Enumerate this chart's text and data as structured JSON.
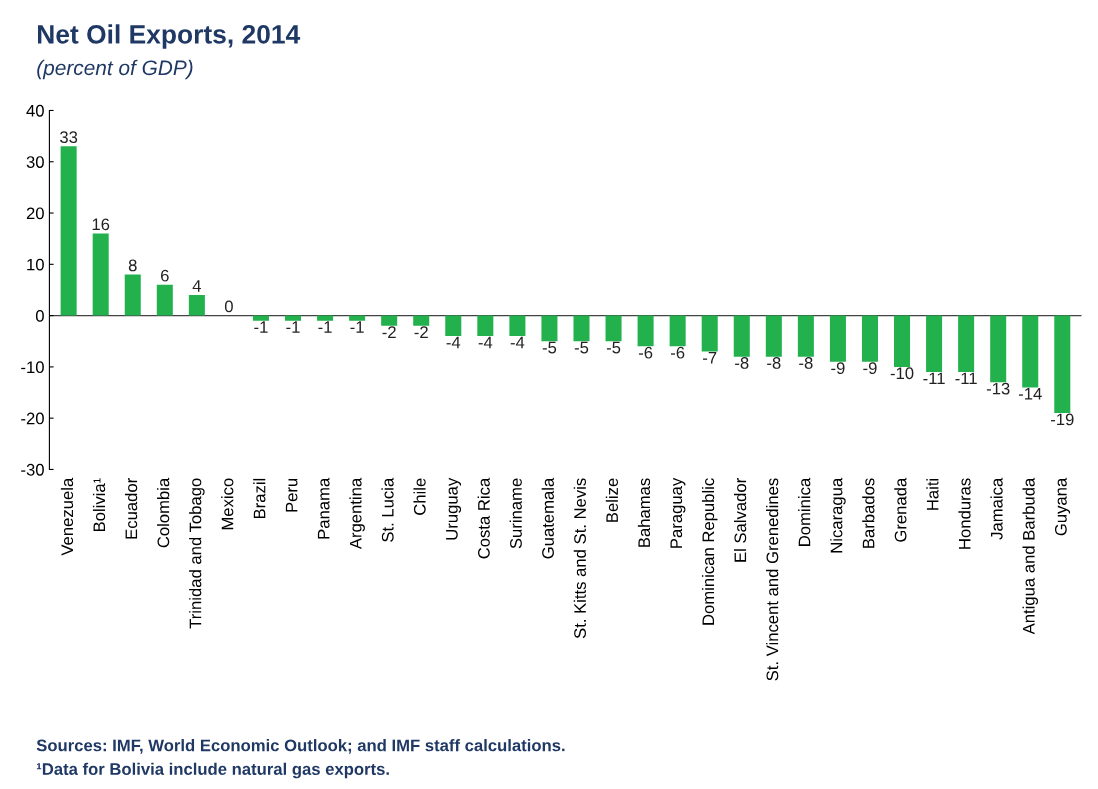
{
  "chart_data": {
    "type": "bar",
    "title": "Net Oil Exports, 2014",
    "subtitle": "(percent of GDP)",
    "categories": [
      "Venezuela",
      "Bolivia¹",
      "Ecuador",
      "Colombia",
      "Trinidad and Tobago",
      "Mexico",
      "Brazil",
      "Peru",
      "Panama",
      "Argentina",
      "St. Lucia",
      "Chile",
      "Uruguay",
      "Costa Rica",
      "Suriname",
      "Guatemala",
      "St. Kitts and St. Nevis",
      "Belize",
      "Bahamas",
      "Paraguay",
      "Dominican Republic",
      "El Salvador",
      "St. Vincent and Grenedines",
      "Dominica",
      "Nicaragua",
      "Barbados",
      "Grenada",
      "Haiti",
      "Honduras",
      "Jamaica",
      "Antigua and Barbuda",
      "Guyana"
    ],
    "values": [
      33,
      16,
      8,
      6,
      4,
      0,
      -1,
      -1,
      -1,
      -1,
      -2,
      -2,
      -4,
      -4,
      -4,
      -5,
      -5,
      -5,
      -6,
      -6,
      -7,
      -8,
      -8,
      -8,
      -9,
      -9,
      -10,
      -11,
      -11,
      -13,
      -14,
      -19
    ],
    "color": "#22b14c",
    "ylim": [
      -30,
      40
    ],
    "yticks": [
      -30,
      -20,
      -10,
      0,
      10,
      20,
      30,
      40
    ],
    "ref_lines": [
      {
        "axis": "y",
        "value": 0,
        "color": "#444444"
      }
    ],
    "data_labels": true,
    "annotations": [
      "Sources: IMF, World Economic Outlook; and IMF staff calculations.",
      "¹Data for Bolivia include natural gas exports."
    ]
  }
}
